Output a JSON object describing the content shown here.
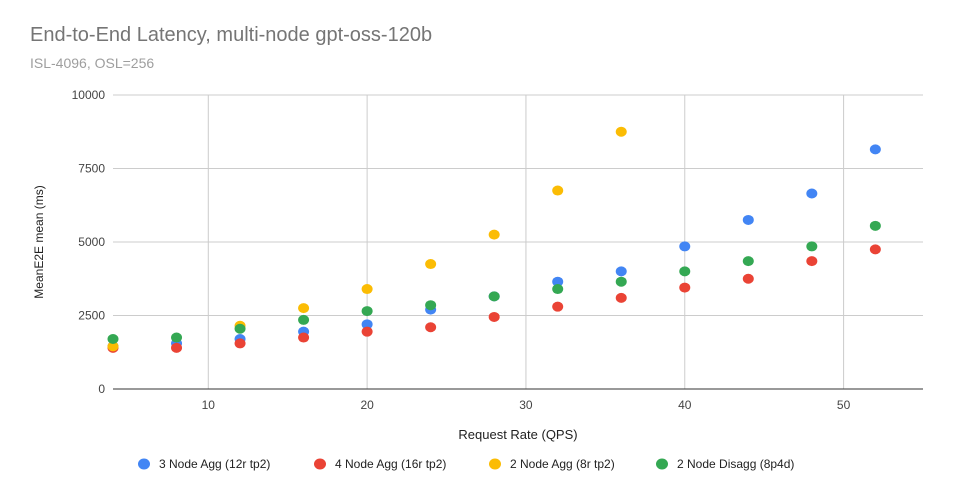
{
  "chart_data": {
    "type": "scatter",
    "title": "End-to-End Latency, multi-node gpt-oss-120b",
    "subtitle": "ISL-4096, OSL=256",
    "xlabel": "Request Rate (QPS)",
    "ylabel": "MeanE2E mean (ms)",
    "xlim": [
      4,
      55
    ],
    "ylim": [
      0,
      10000
    ],
    "xticks": [
      10,
      20,
      30,
      40,
      50
    ],
    "yticks": [
      0,
      2500,
      5000,
      7500,
      10000
    ],
    "grid": true,
    "legend_position": "bottom",
    "series": [
      {
        "name": "3 Node Agg (12r tp2)",
        "color": "#4285f4",
        "x": [
          4,
          8,
          12,
          16,
          20,
          24,
          28,
          32,
          36,
          40,
          44,
          48,
          52
        ],
        "y": [
          1450,
          1550,
          1700,
          1950,
          2200,
          2700,
          3150,
          3650,
          4000,
          4850,
          5750,
          6650,
          8150
        ]
      },
      {
        "name": "4 Node Agg (16r tp2)",
        "color": "#ea4335",
        "x": [
          4,
          8,
          12,
          16,
          20,
          24,
          28,
          32,
          36,
          40,
          44,
          48,
          52
        ],
        "y": [
          1400,
          1400,
          1550,
          1750,
          1950,
          2100,
          2450,
          2800,
          3100,
          3450,
          3750,
          4350,
          4750
        ]
      },
      {
        "name": "2 Node Agg (8r tp2)",
        "color": "#fbbc04",
        "x": [
          4,
          12,
          16,
          20,
          24,
          28,
          32,
          36
        ],
        "y": [
          1450,
          2150,
          2750,
          3400,
          4250,
          5250,
          6750,
          8750
        ]
      },
      {
        "name": "2 Node Disagg (8p4d)",
        "color": "#34a853",
        "x": [
          4,
          8,
          12,
          16,
          20,
          24,
          28,
          32,
          36,
          40,
          44,
          48,
          52
        ],
        "y": [
          1700,
          1750,
          2050,
          2350,
          2650,
          2850,
          3150,
          3400,
          3650,
          4000,
          4350,
          4850,
          5550
        ]
      }
    ]
  }
}
